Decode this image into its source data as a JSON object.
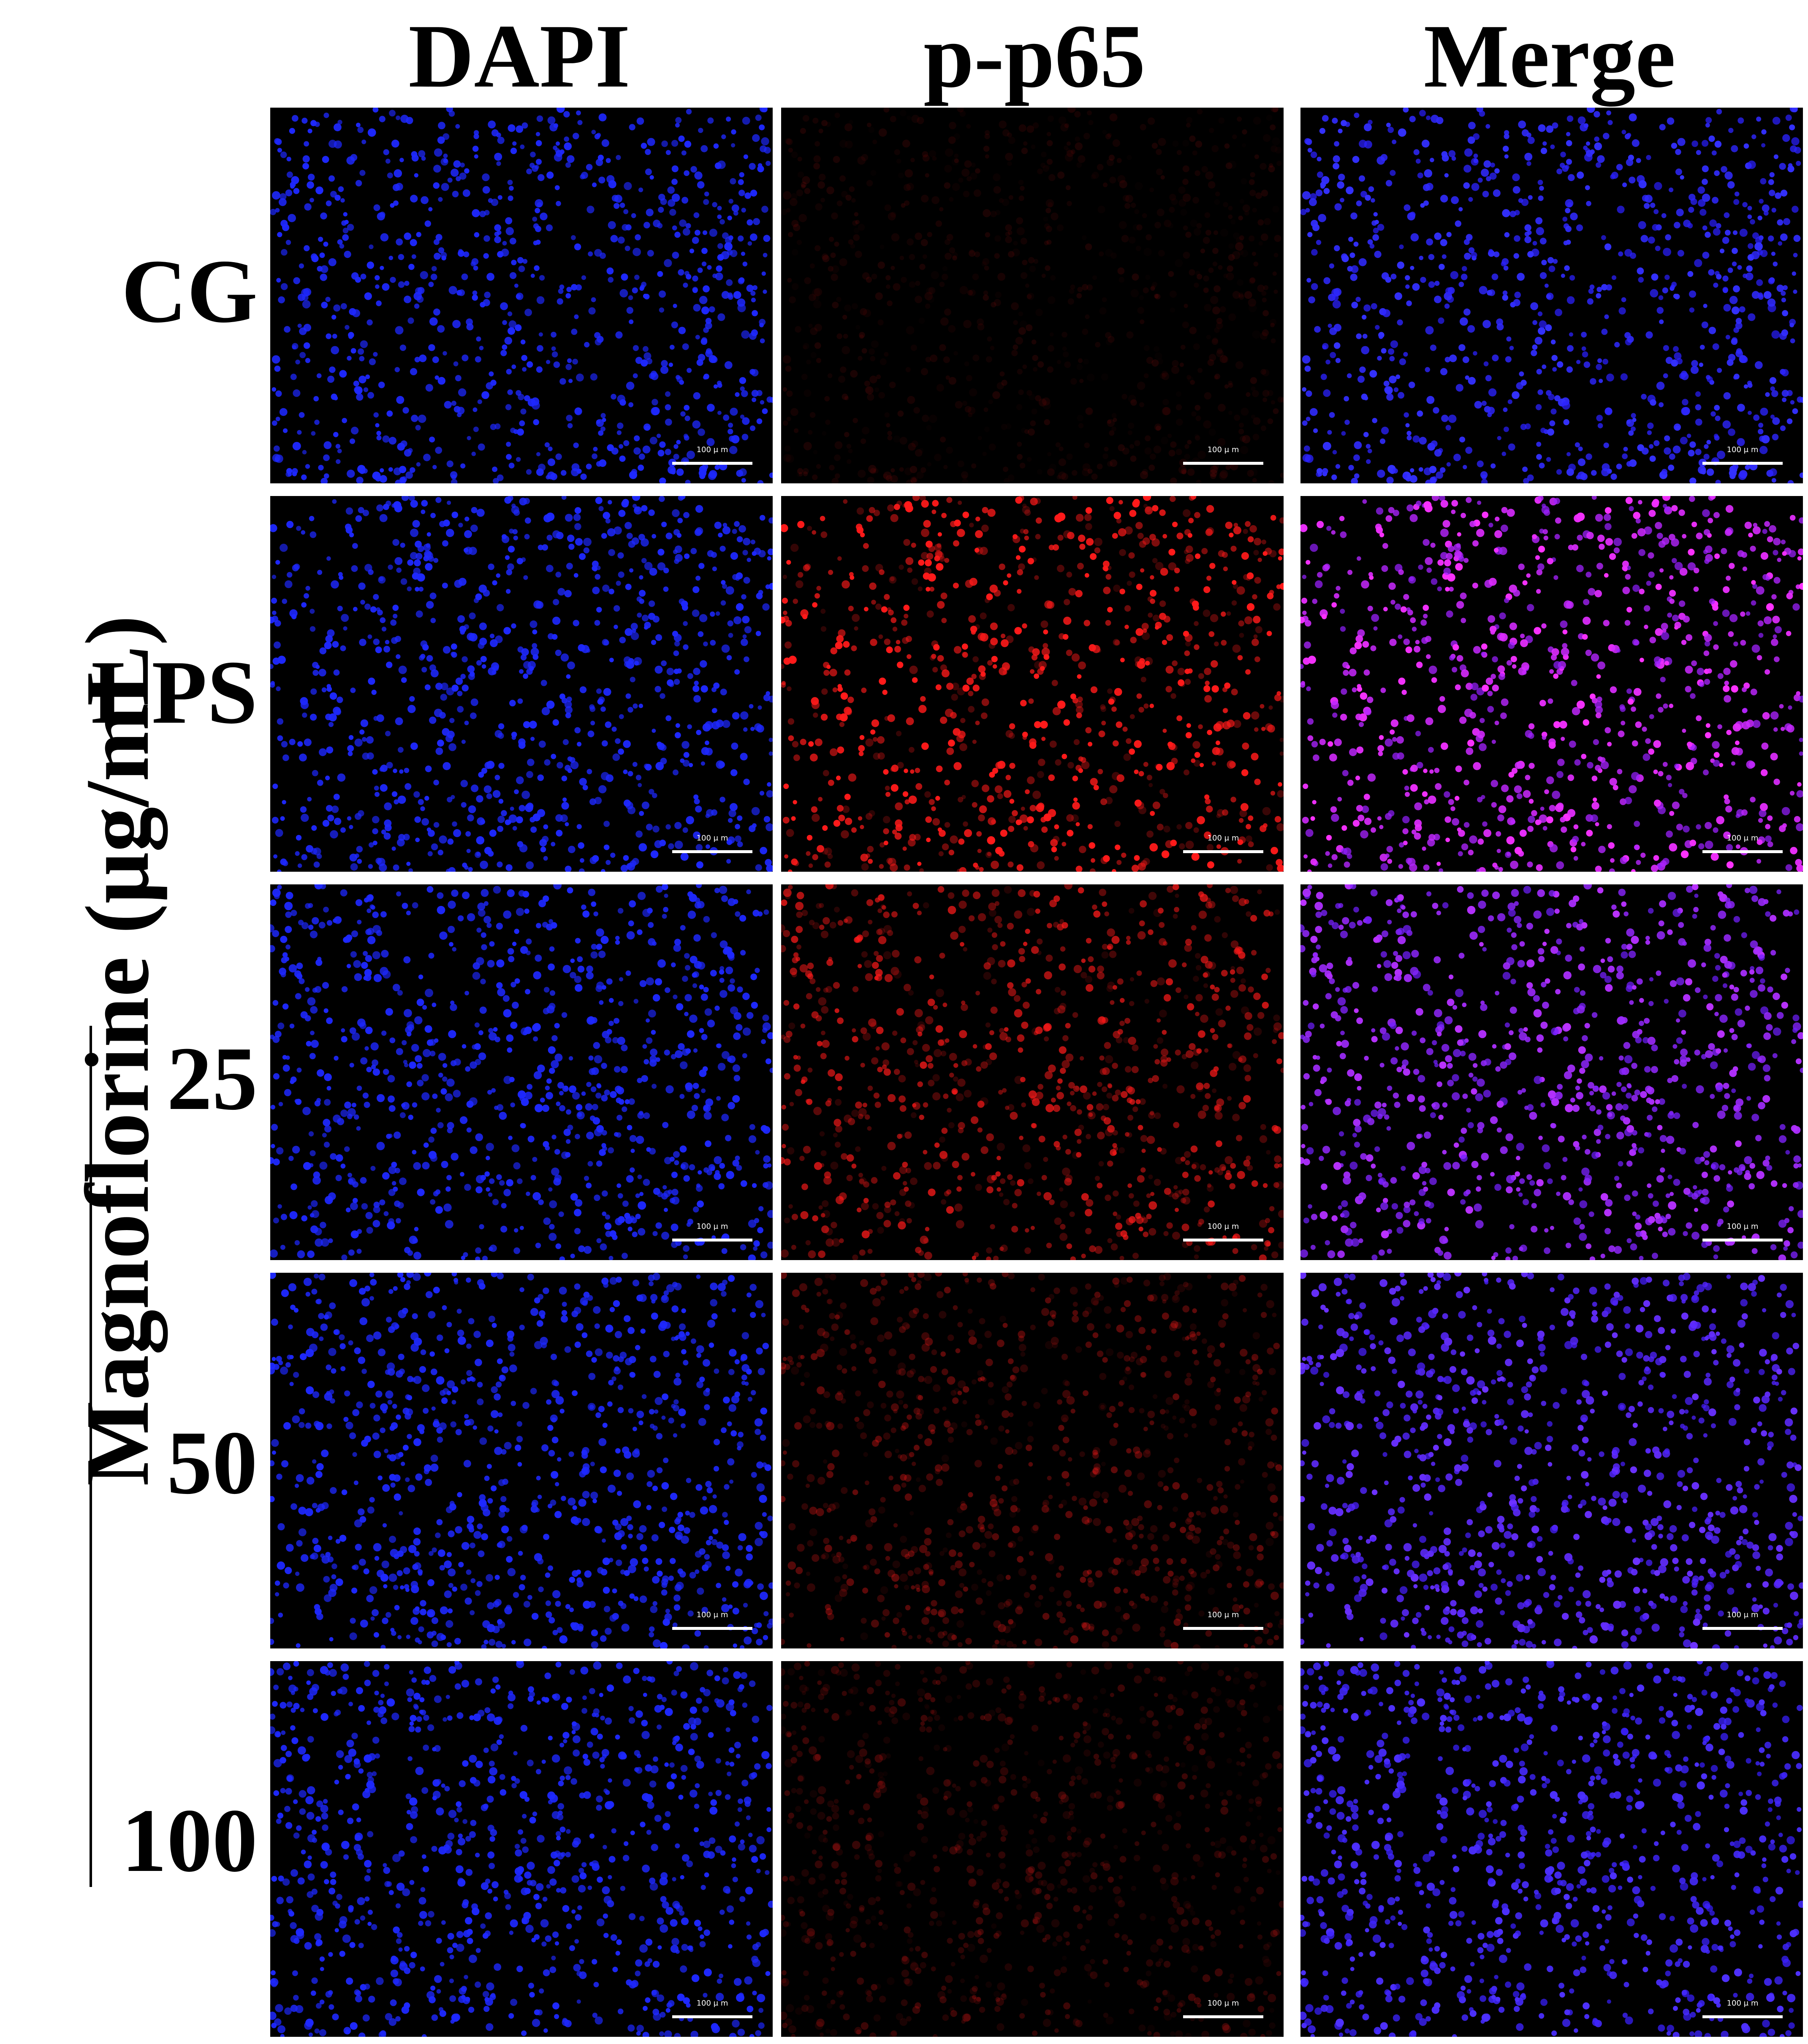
{
  "columns": [
    "DAPI",
    "p-p65",
    "Merge"
  ],
  "rows": [
    "CG",
    "LPS",
    "25",
    "50",
    "100"
  ],
  "group_title": "Magnoflorine (μg/mL)",
  "scale_bar_label": "100 μ m",
  "channels": {
    "DAPI": "#1e28ff",
    "p-p65": "#ff1a1a",
    "Merge": "#7a2cff"
  },
  "p65_intensity": {
    "CG": 0.1,
    "LPS": 1.0,
    "25": 0.7,
    "50": 0.35,
    "100": 0.22
  }
}
